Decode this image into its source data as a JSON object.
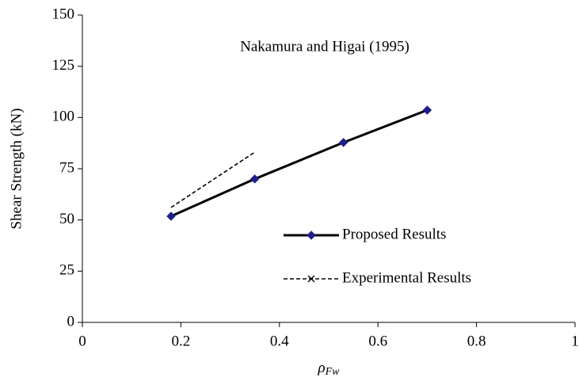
{
  "chart_data": {
    "type": "line",
    "annotation": "Nakamura and Higai (1995)",
    "x_label": {
      "symbol": "ρ",
      "subscript": "Fw"
    },
    "y_label": "Shear Strength (kN)",
    "xlim": [
      0,
      1
    ],
    "xticks": [
      0,
      0.2,
      0.4,
      0.6,
      0.8,
      1
    ],
    "ylim": [
      0,
      150
    ],
    "yticks": [
      0,
      25,
      50,
      75,
      100,
      125,
      150
    ],
    "grid": false,
    "series": [
      {
        "name": "Proposed Results",
        "color": "#000000",
        "marker_color": "#1f1f8c",
        "marker": "diamond",
        "dash": "solid",
        "x": [
          0.18,
          0.35,
          0.53,
          0.7
        ],
        "values": [
          51.8,
          70.0,
          87.8,
          103.6
        ]
      },
      {
        "name": "Experimental Results",
        "color": "#000000",
        "marker": "x",
        "dash": "dashed",
        "x": [
          0.18,
          0.35
        ],
        "values": [
          56.1,
          83.1
        ]
      }
    ]
  }
}
